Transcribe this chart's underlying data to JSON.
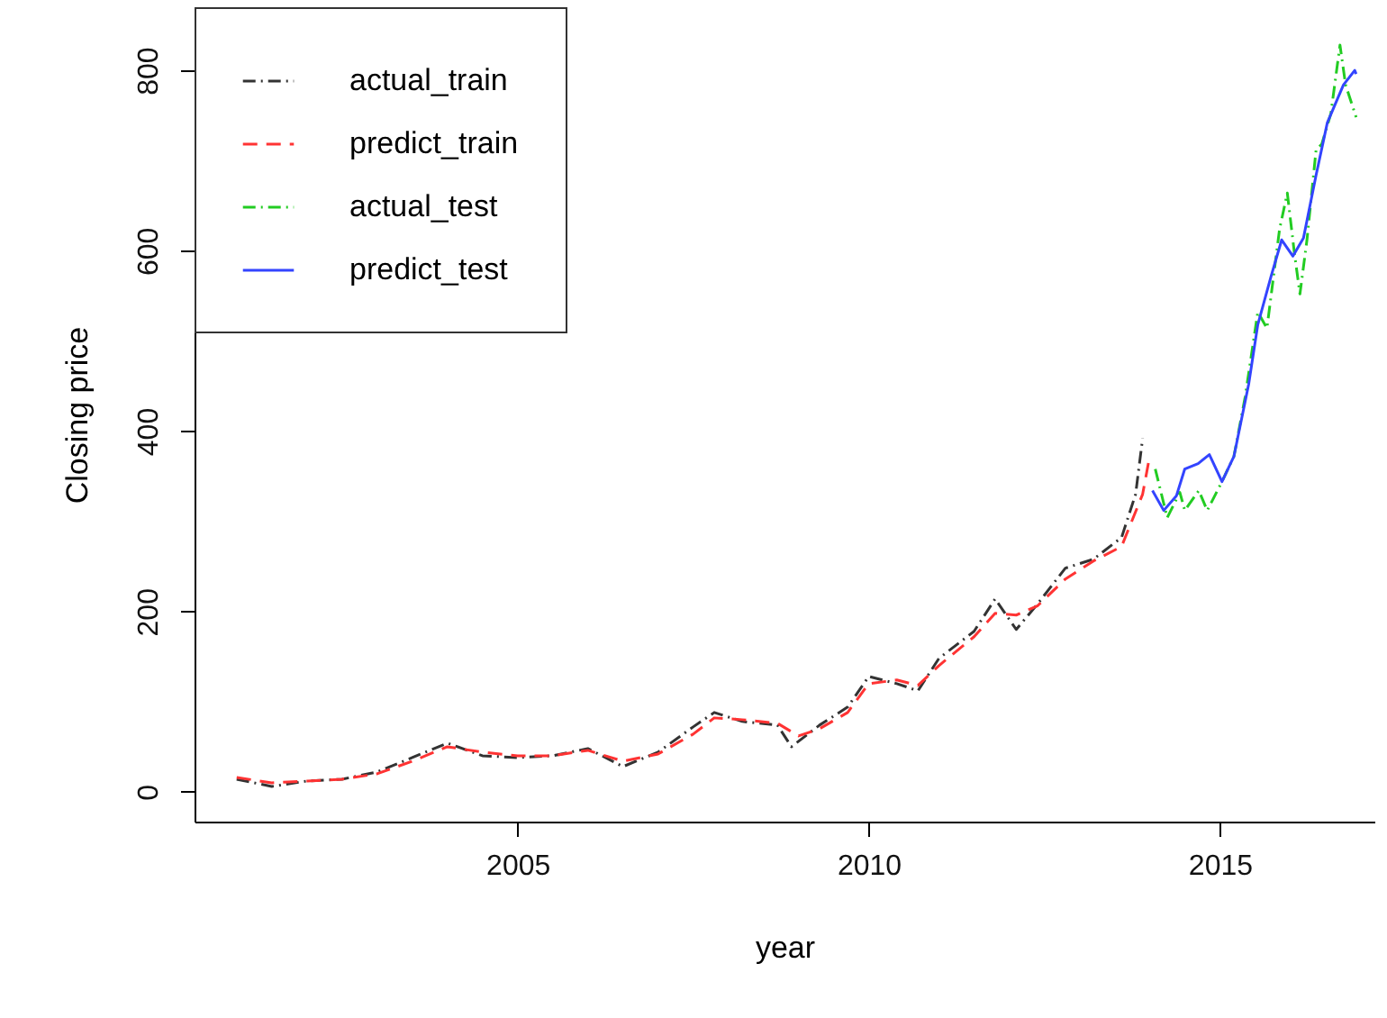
{
  "chart_data": {
    "type": "line",
    "xlabel": "year",
    "ylabel": "Closing price",
    "xlim": [
      2000.4,
      2017.2
    ],
    "ylim": [
      -33,
      870
    ],
    "xticks": [
      2005,
      2010,
      2015
    ],
    "yticks": [
      0,
      200,
      400,
      600,
      800
    ],
    "legend": "top left",
    "series": [
      {
        "name": "actual_train",
        "color": "#333333",
        "line_style": "dotted",
        "x": [
          2001.0,
          2001.5,
          2002.0,
          2002.5,
          2003.0,
          2003.5,
          2004.0,
          2004.5,
          2005.0,
          2005.5,
          2006.0,
          2006.5,
          2007.0,
          2007.5,
          2007.8,
          2008.2,
          2008.7,
          2008.9,
          2009.3,
          2009.7,
          2010.0,
          2010.4,
          2010.7,
          2011.0,
          2011.5,
          2011.8,
          2012.1,
          2012.4,
          2012.8,
          2013.2,
          2013.6,
          2013.8,
          2013.9
        ],
        "values": [
          14,
          6,
          12,
          14,
          22,
          38,
          54,
          40,
          38,
          40,
          48,
          28,
          44,
          72,
          88,
          78,
          74,
          50,
          74,
          94,
          128,
          120,
          112,
          148,
          178,
          214,
          180,
          208,
          248,
          258,
          282,
          330,
          392
        ]
      },
      {
        "name": "predict_train",
        "color": "#ff3333",
        "line_style": "dashed",
        "x": [
          2001.0,
          2001.5,
          2002.0,
          2002.5,
          2003.0,
          2003.5,
          2004.0,
          2004.5,
          2005.0,
          2005.5,
          2006.0,
          2006.5,
          2007.0,
          2007.5,
          2007.8,
          2008.2,
          2008.7,
          2009.0,
          2009.3,
          2009.7,
          2010.0,
          2010.4,
          2010.7,
          2011.0,
          2011.5,
          2011.8,
          2012.1,
          2012.4,
          2012.8,
          2013.2,
          2013.6,
          2013.9,
          2014.0
        ],
        "values": [
          16,
          10,
          12,
          14,
          20,
          34,
          50,
          44,
          40,
          40,
          46,
          34,
          42,
          64,
          82,
          80,
          76,
          62,
          70,
          88,
          120,
          124,
          118,
          140,
          172,
          198,
          196,
          206,
          236,
          256,
          272,
          330,
          372
        ]
      },
      {
        "name": "actual_test",
        "color": "#22cc22",
        "line_style": "dotted",
        "x": [
          2014.08,
          2014.25,
          2014.43,
          2014.5,
          2014.7,
          2014.82,
          2015.03,
          2015.2,
          2015.36,
          2015.54,
          2015.67,
          2015.85,
          2015.96,
          2016.06,
          2016.14,
          2016.24,
          2016.37,
          2016.45,
          2016.58,
          2016.71,
          2016.79,
          2016.94
        ],
        "values": [
          358,
          304,
          332,
          312,
          334,
          312,
          344,
          372,
          438,
          532,
          514,
          624,
          664,
          598,
          552,
          612,
          712,
          718,
          752,
          828,
          784,
          748
        ]
      },
      {
        "name": "predict_test",
        "color": "#3344ff",
        "line_style": "solid",
        "x": [
          2014.04,
          2014.2,
          2014.38,
          2014.5,
          2014.69,
          2014.85,
          2015.03,
          2015.2,
          2015.41,
          2015.54,
          2015.73,
          2015.88,
          2016.04,
          2016.19,
          2016.37,
          2016.53,
          2016.76,
          2016.92,
          2016.94
        ],
        "values": [
          334,
          312,
          328,
          358,
          364,
          374,
          344,
          372,
          452,
          518,
          572,
          612,
          594,
          614,
          684,
          742,
          784,
          800,
          796
        ]
      }
    ]
  }
}
